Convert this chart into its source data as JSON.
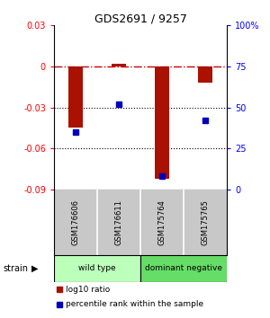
{
  "title": "GDS2691 / 9257",
  "samples": [
    "GSM176606",
    "GSM176611",
    "GSM175764",
    "GSM175765"
  ],
  "log10_ratio": [
    -0.045,
    0.002,
    -0.082,
    -0.012
  ],
  "percentile_rank": [
    35,
    52,
    8,
    42
  ],
  "groups": [
    {
      "label": "wild type",
      "color": "#bbffbb",
      "indices": [
        0,
        1
      ]
    },
    {
      "label": "dominant negative",
      "color": "#66dd66",
      "indices": [
        2,
        3
      ]
    }
  ],
  "ylim_left": [
    -0.09,
    0.03
  ],
  "ylim_right": [
    0,
    100
  ],
  "left_ticks": [
    0.03,
    0.0,
    -0.03,
    -0.06,
    -0.09
  ],
  "right_ticks": [
    100,
    75,
    50,
    25,
    0
  ],
  "left_tick_labels": [
    "0.03",
    "0",
    "-0.03",
    "-0.06",
    "-0.09"
  ],
  "right_tick_labels": [
    "100%",
    "75",
    "50",
    "25",
    "0"
  ],
  "bar_color": "#aa1100",
  "dot_color": "#0000bb",
  "hline_color": "#cc0000",
  "hline_y": 0,
  "dotted_lines": [
    -0.03,
    -0.06
  ],
  "strain_label": "strain",
  "legend_red": "log10 ratio",
  "legend_blue": "percentile rank within the sample",
  "background_color": "#ffffff",
  "plot_bg": "#ffffff",
  "sample_box_color": "#c8c8c8"
}
